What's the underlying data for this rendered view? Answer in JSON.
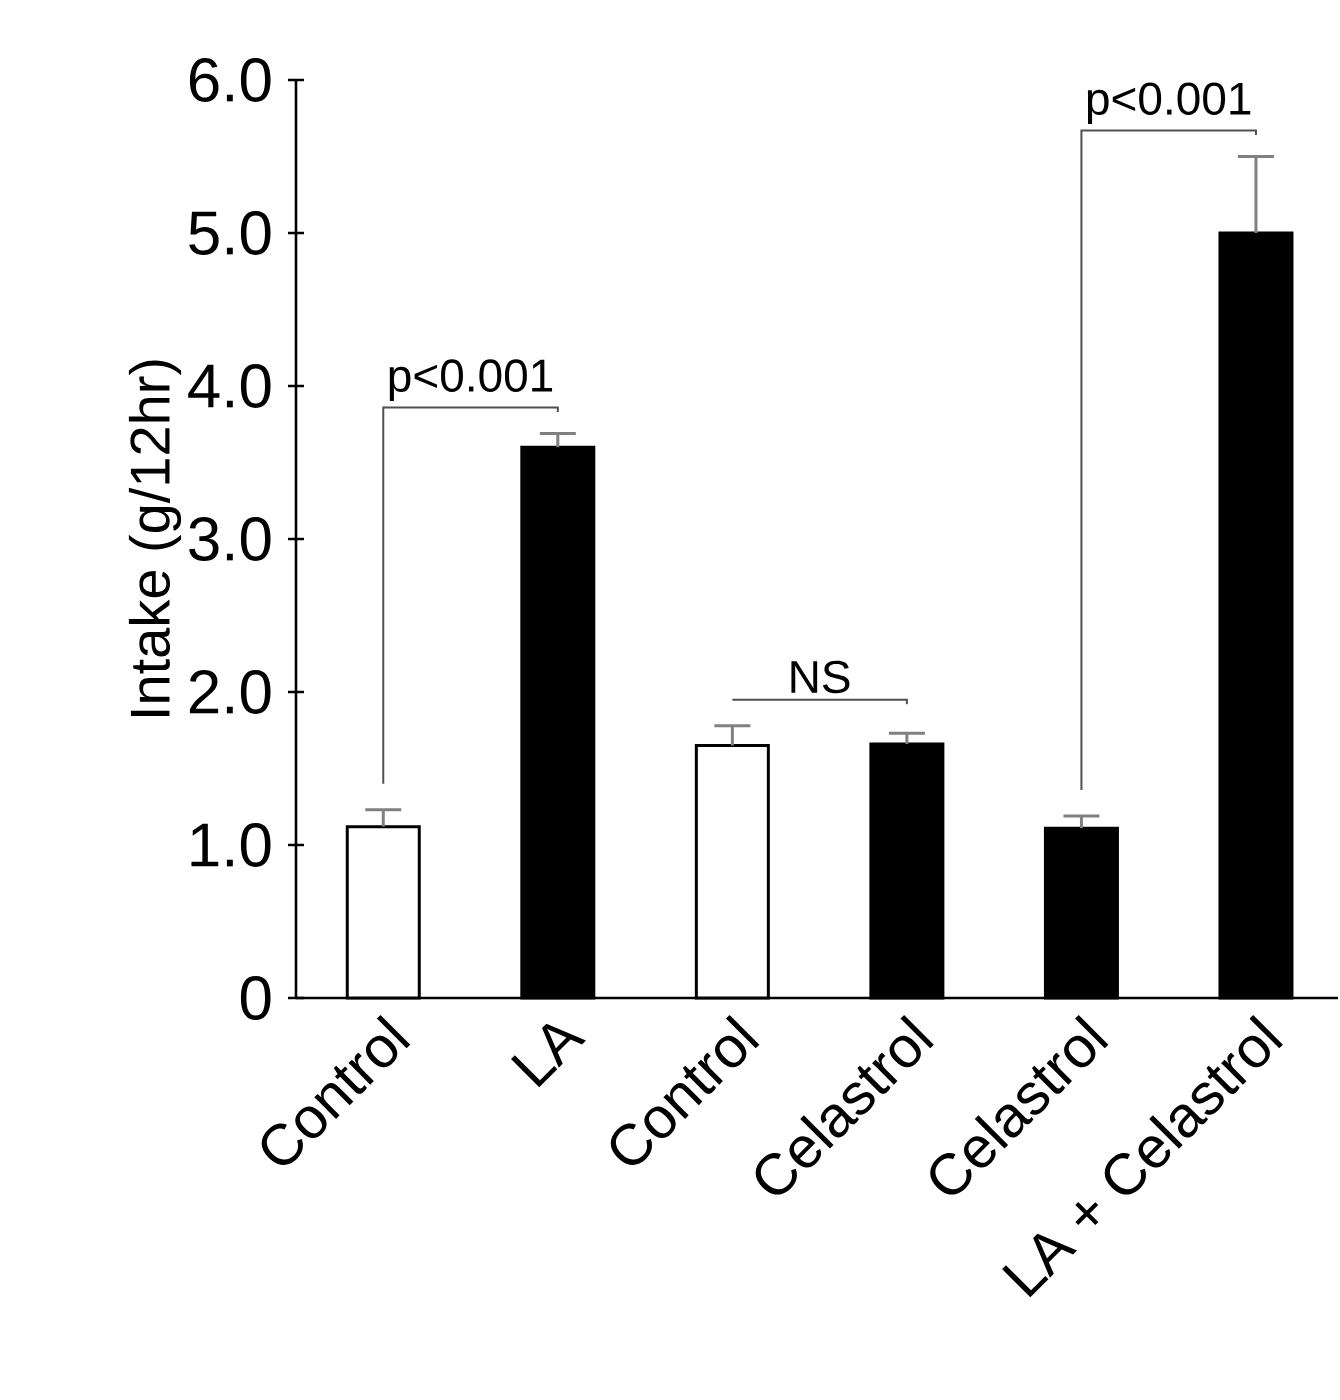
{
  "chart_data": {
    "type": "bar",
    "ylabel": "Intake (g/12hr)",
    "categories": [
      "Control",
      "LA",
      "Control",
      "Celastrol",
      "Celastrol",
      "LA + Celastrol"
    ],
    "values": [
      1.12,
      3.6,
      1.65,
      1.66,
      1.11,
      5.0
    ],
    "colors": [
      "#ffffff",
      "#000000",
      "#ffffff",
      "#000000",
      "#000000",
      "#000000"
    ],
    "errors": [
      [
        1.12,
        1.23
      ],
      [
        3.6,
        3.69
      ],
      [
        1.65,
        1.78
      ],
      [
        1.66,
        1.73
      ],
      [
        1.11,
        1.19
      ],
      [
        5.0,
        5.5
      ]
    ],
    "ylim": [
      0,
      6
    ],
    "yticks": [
      0,
      {
        "value": 1,
        "label": "1.0"
      },
      {
        "value": 2,
        "label": "2.0"
      },
      {
        "value": 3,
        "label": "3.0"
      },
      {
        "value": 4,
        "label": "4.0"
      },
      {
        "value": 5,
        "label": "5.0"
      },
      {
        "value": 6,
        "label": "6.0"
      }
    ],
    "annotations": [
      "p<0.001",
      "NS",
      "p<0.001"
    ]
  }
}
